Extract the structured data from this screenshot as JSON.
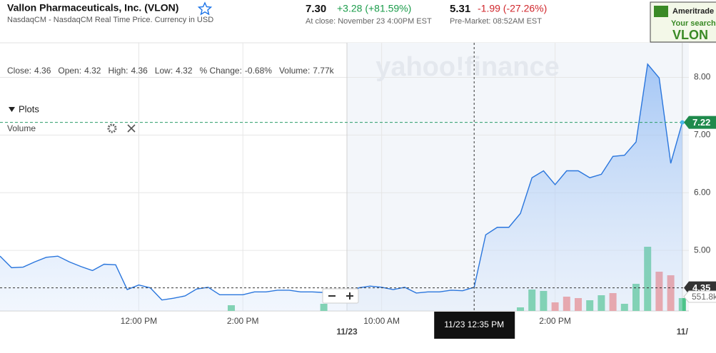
{
  "header": {
    "name": "Vallon Pharmaceuticals, Inc. (VLON)",
    "exchange": "NasdaqCM - NasdaqCM Real Time Price. Currency in USD",
    "close_price": "7.30",
    "close_change": "+3.28 (+81.59%)",
    "close_note": "At close: November 23 4:00PM EST",
    "pre_price": "5.31",
    "pre_change": "-1.99 (-27.26%)",
    "pre_note": "Pre-Market: 08:52AM EST"
  },
  "ad": {
    "brand": "Ameritrade",
    "line": "Your search:",
    "ticker": "VLON"
  },
  "chart_data": {
    "type": "line",
    "stats": [
      {
        "label": "Close:",
        "value": "4.36"
      },
      {
        "label": "Open:",
        "value": "4.32"
      },
      {
        "label": "High:",
        "value": "4.36"
      },
      {
        "label": "Low:",
        "value": "4.32"
      },
      {
        "label": "% Change:",
        "value": "-0.68%"
      },
      {
        "label": "Volume:",
        "value": "7.77k"
      }
    ],
    "plots_label": "Plots",
    "watermark": "yahoo!finance",
    "crosshair_label": "11/23 12:35 PM",
    "categories": [
      null,
      null,
      null,
      null,
      null,
      null,
      null,
      null,
      null,
      null,
      null,
      null,
      "12:00 PM",
      null,
      null,
      null,
      null,
      null,
      null,
      null,
      null,
      "2:00 PM",
      null,
      null,
      null,
      null,
      null,
      null,
      null,
      null,
      "11/23",
      null,
      null,
      "10:00 AM",
      null,
      null,
      null,
      null,
      null,
      null,
      null,
      null,
      null,
      null,
      null,
      null,
      null,
      null,
      "2:00 PM",
      null,
      null,
      null,
      null,
      null,
      null,
      null,
      null,
      null,
      null,
      "11/"
    ],
    "series": [
      {
        "color": "#2a76dd",
        "values": [
          4.9,
          4.7,
          4.71,
          4.8,
          4.88,
          4.9,
          4.8,
          4.72,
          4.65,
          4.76,
          4.75,
          4.32,
          4.4,
          4.35,
          4.14,
          4.17,
          4.21,
          4.33,
          4.36,
          4.23,
          4.23,
          4.23,
          4.28,
          4.28,
          4.31,
          4.31,
          4.28,
          4.28,
          4.27,
          4.26,
          4.11,
          4.35,
          4.38,
          4.36,
          4.32,
          4.36,
          4.26,
          4.28,
          4.28,
          4.31,
          4.3,
          4.36,
          5.27,
          5.4,
          5.4,
          5.64,
          6.26,
          6.38,
          6.14,
          6.38,
          6.38,
          6.26,
          6.32,
          6.63,
          6.65,
          6.88,
          8.23,
          7.99,
          6.51,
          7.22
        ]
      }
    ],
    "volume": {
      "name": "Volume",
      "values": [
        null,
        null,
        null,
        null,
        null,
        null,
        null,
        null,
        null,
        null,
        null,
        null,
        null,
        null,
        null,
        null,
        null,
        null,
        null,
        null,
        221,
        null,
        null,
        null,
        null,
        null,
        null,
        null,
        276,
        null,
        null,
        null,
        null,
        null,
        null,
        null,
        null,
        null,
        null,
        null,
        null,
        null,
        null,
        null,
        null,
        138,
        828,
        773,
        331,
        552,
        497,
        414,
        607,
        690,
        276,
        1049,
        2483,
        1518,
        1380,
        497
      ],
      "colors": [
        null,
        null,
        null,
        null,
        null,
        null,
        null,
        null,
        null,
        null,
        null,
        null,
        null,
        null,
        null,
        null,
        null,
        null,
        null,
        null,
        "#4cc48a",
        null,
        null,
        null,
        null,
        null,
        null,
        null,
        "#4cc48a",
        null,
        null,
        null,
        null,
        null,
        null,
        null,
        null,
        null,
        null,
        null,
        null,
        null,
        null,
        null,
        null,
        "#4cc48a",
        "#4cc48a",
        "#4cc48a",
        "#ee8080",
        "#ee8080",
        "#ee8080",
        "#4cc48a",
        "#4cc48a",
        "#ee8080",
        "#4cc48a",
        "#4cc48a",
        "#4cc48a",
        "#ee8080",
        "#ee8080",
        "#4cc48a"
      ],
      "vlim": [
        0,
        10374
      ],
      "tick": {
        "value": 551.8,
        "label": "551.8k"
      }
    },
    "ylim": [
      3.95,
      8.6
    ],
    "yticks": [
      {
        "value": 5,
        "label": "5.00"
      },
      {
        "value": 6,
        "label": "6.00"
      },
      {
        "value": 7,
        "label": "7.00"
      },
      {
        "value": 8,
        "label": "8.00"
      }
    ],
    "last_value": 7.22,
    "crosshair_value": 4.35,
    "grid": true
  }
}
